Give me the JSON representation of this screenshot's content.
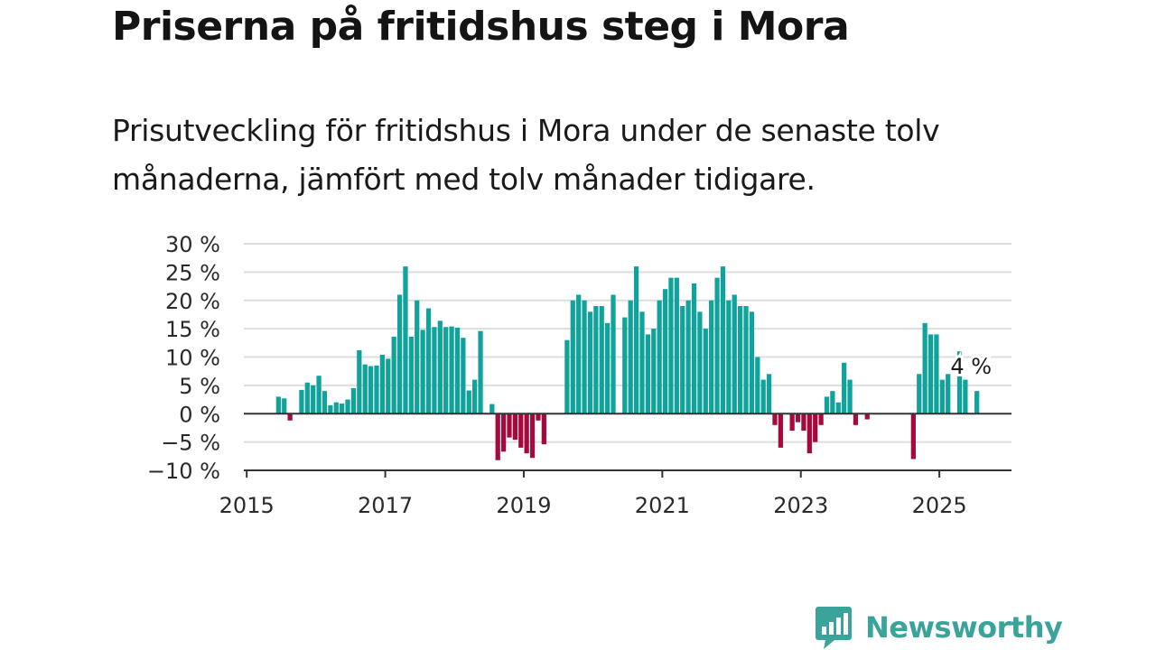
{
  "title": "Priserna på fritidshus steg i Mora",
  "subtitle": "Prisutveckling för fritidshus i Mora under de senaste tolv månaderna, jämfört med tolv månader tidigare.",
  "brand": {
    "name": "Newsworthy",
    "icon": "newsworthy-logo-icon",
    "color": "#3aa39a"
  },
  "colors": {
    "positive": "#0fa39c",
    "negative": "#a5093d",
    "grid": "#dddddd",
    "axis": "#333333"
  },
  "chart_data": {
    "type": "bar",
    "title": "Priserna på fritidshus steg i Mora",
    "subtitle": "Prisutveckling för fritidshus i Mora under de senaste tolv månaderna, jämfört med tolv månader tidigare.",
    "xlabel": "",
    "ylabel": "",
    "ylim": [
      -10,
      30
    ],
    "yticks": [
      -10,
      -5,
      0,
      5,
      10,
      15,
      20,
      25,
      30
    ],
    "ytick_labels": [
      "−10 %",
      "−5 %",
      "0 %",
      "5 %",
      "10 %",
      "15 %",
      "20 %",
      "25 %",
      "30 %"
    ],
    "xticks": [
      2015,
      2017,
      2019,
      2021,
      2023,
      2025
    ],
    "xtick_labels": [
      "2015",
      "2017",
      "2019",
      "2021",
      "2023",
      "2025"
    ],
    "x_range": [
      "2014-12",
      "2026-01"
    ],
    "grid": true,
    "annotation": {
      "text": "4 %",
      "date": "2025-06",
      "value": 4
    },
    "points": [
      {
        "date": "2015-06",
        "value": 3
      },
      {
        "date": "2015-07",
        "value": 2.7
      },
      {
        "date": "2015-08",
        "value": -1.2
      },
      {
        "date": "2015-10",
        "value": 4.2
      },
      {
        "date": "2015-11",
        "value": 5.5
      },
      {
        "date": "2015-12",
        "value": 5
      },
      {
        "date": "2016-01",
        "value": 6.7
      },
      {
        "date": "2016-02",
        "value": 4
      },
      {
        "date": "2016-03",
        "value": 1.5
      },
      {
        "date": "2016-04",
        "value": 2
      },
      {
        "date": "2016-05",
        "value": 1.8
      },
      {
        "date": "2016-06",
        "value": 2.5
      },
      {
        "date": "2016-07",
        "value": 4.5
      },
      {
        "date": "2016-08",
        "value": 11.2
      },
      {
        "date": "2016-09",
        "value": 8.7
      },
      {
        "date": "2016-10",
        "value": 8.4
      },
      {
        "date": "2016-11",
        "value": 8.5
      },
      {
        "date": "2016-12",
        "value": 10.4
      },
      {
        "date": "2017-01",
        "value": 9.7
      },
      {
        "date": "2017-02",
        "value": 13.6
      },
      {
        "date": "2017-03",
        "value": 21
      },
      {
        "date": "2017-04",
        "value": 26
      },
      {
        "date": "2017-05",
        "value": 13.6
      },
      {
        "date": "2017-06",
        "value": 20
      },
      {
        "date": "2017-07",
        "value": 14.8
      },
      {
        "date": "2017-08",
        "value": 18.6
      },
      {
        "date": "2017-09",
        "value": 15.3
      },
      {
        "date": "2017-10",
        "value": 16.4
      },
      {
        "date": "2017-11",
        "value": 15.3
      },
      {
        "date": "2017-12",
        "value": 15.4
      },
      {
        "date": "2018-01",
        "value": 15.2
      },
      {
        "date": "2018-02",
        "value": 13.4
      },
      {
        "date": "2018-03",
        "value": 4.1
      },
      {
        "date": "2018-04",
        "value": 6
      },
      {
        "date": "2018-05",
        "value": 14.6
      },
      {
        "date": "2018-07",
        "value": 1.7
      },
      {
        "date": "2018-08",
        "value": -8.2
      },
      {
        "date": "2018-09",
        "value": -6.7
      },
      {
        "date": "2018-10",
        "value": -4.2
      },
      {
        "date": "2018-11",
        "value": -4.6
      },
      {
        "date": "2018-12",
        "value": -6
      },
      {
        "date": "2019-01",
        "value": -7
      },
      {
        "date": "2019-02",
        "value": -7.8
      },
      {
        "date": "2019-03",
        "value": -1.2
      },
      {
        "date": "2019-04",
        "value": -5.4
      },
      {
        "date": "2019-08",
        "value": 13
      },
      {
        "date": "2019-09",
        "value": 20
      },
      {
        "date": "2019-10",
        "value": 21
      },
      {
        "date": "2019-11",
        "value": 20
      },
      {
        "date": "2019-12",
        "value": 18
      },
      {
        "date": "2020-01",
        "value": 19
      },
      {
        "date": "2020-02",
        "value": 19
      },
      {
        "date": "2020-03",
        "value": 16
      },
      {
        "date": "2020-04",
        "value": 21
      },
      {
        "date": "2020-06",
        "value": 17
      },
      {
        "date": "2020-07",
        "value": 20
      },
      {
        "date": "2020-08",
        "value": 26
      },
      {
        "date": "2020-09",
        "value": 18
      },
      {
        "date": "2020-10",
        "value": 14
      },
      {
        "date": "2020-11",
        "value": 15
      },
      {
        "date": "2020-12",
        "value": 20
      },
      {
        "date": "2021-01",
        "value": 22
      },
      {
        "date": "2021-02",
        "value": 24
      },
      {
        "date": "2021-03",
        "value": 24
      },
      {
        "date": "2021-04",
        "value": 19
      },
      {
        "date": "2021-05",
        "value": 20
      },
      {
        "date": "2021-06",
        "value": 23
      },
      {
        "date": "2021-07",
        "value": 18
      },
      {
        "date": "2021-08",
        "value": 15
      },
      {
        "date": "2021-09",
        "value": 20
      },
      {
        "date": "2021-10",
        "value": 24
      },
      {
        "date": "2021-11",
        "value": 26
      },
      {
        "date": "2021-12",
        "value": 20
      },
      {
        "date": "2022-01",
        "value": 21
      },
      {
        "date": "2022-02",
        "value": 19
      },
      {
        "date": "2022-03",
        "value": 19
      },
      {
        "date": "2022-04",
        "value": 18
      },
      {
        "date": "2022-05",
        "value": 10
      },
      {
        "date": "2022-06",
        "value": 6
      },
      {
        "date": "2022-07",
        "value": 7
      },
      {
        "date": "2022-08",
        "value": -2
      },
      {
        "date": "2022-09",
        "value": -6
      },
      {
        "date": "2022-11",
        "value": -3
      },
      {
        "date": "2022-12",
        "value": -1.5
      },
      {
        "date": "2023-01",
        "value": -3
      },
      {
        "date": "2023-02",
        "value": -7
      },
      {
        "date": "2023-03",
        "value": -5
      },
      {
        "date": "2023-04",
        "value": -2
      },
      {
        "date": "2023-05",
        "value": 3
      },
      {
        "date": "2023-06",
        "value": 4
      },
      {
        "date": "2023-07",
        "value": 2
      },
      {
        "date": "2023-08",
        "value": 9
      },
      {
        "date": "2023-09",
        "value": 6
      },
      {
        "date": "2023-10",
        "value": -2
      },
      {
        "date": "2023-12",
        "value": -1
      },
      {
        "date": "2024-08",
        "value": -8
      },
      {
        "date": "2024-09",
        "value": 7
      },
      {
        "date": "2024-10",
        "value": 16
      },
      {
        "date": "2024-11",
        "value": 14
      },
      {
        "date": "2024-12",
        "value": 14
      },
      {
        "date": "2025-01",
        "value": 6
      },
      {
        "date": "2025-02",
        "value": 7
      },
      {
        "date": "2025-04",
        "value": 11
      },
      {
        "date": "2025-05",
        "value": 6
      },
      {
        "date": "2025-07",
        "value": 4
      }
    ]
  }
}
